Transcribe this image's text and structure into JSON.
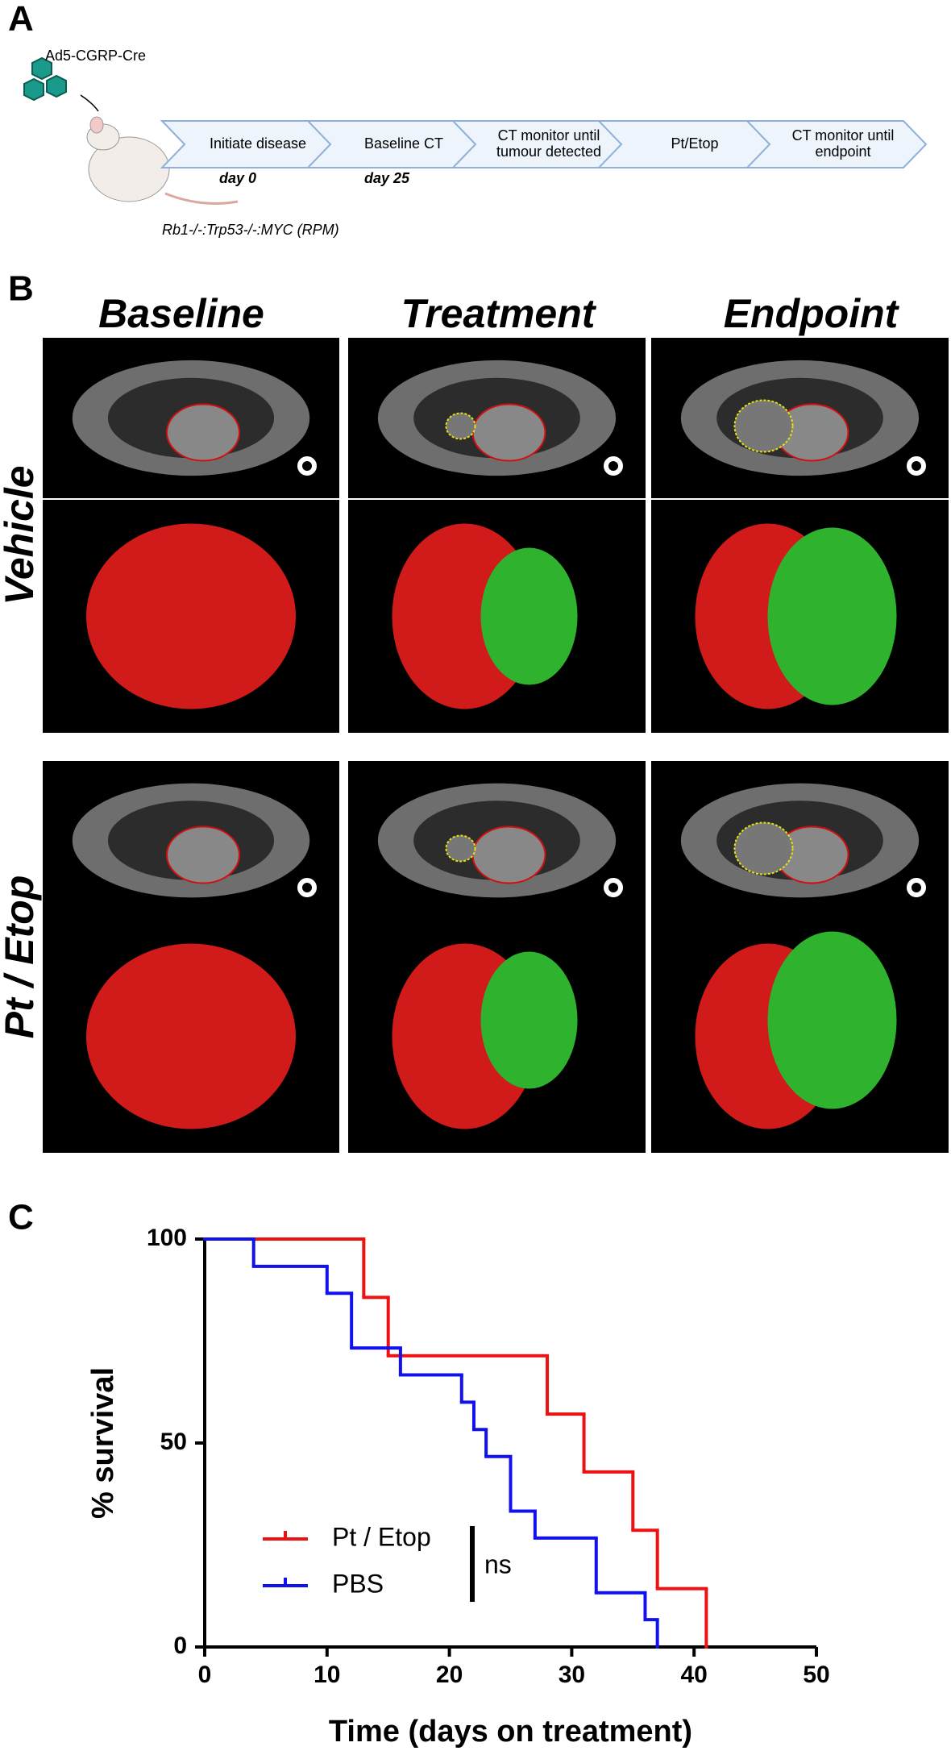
{
  "panel_a": {
    "label": "A",
    "vector": "Ad5-CGRP-Cre",
    "genotype": "Rb1-/-:Trp53-/-:MYC (RPM)",
    "steps": [
      [
        "Initiate disease"
      ],
      [
        "Baseline CT"
      ],
      [
        "CT monitor until",
        "tumour detected"
      ],
      [
        "Pt/Etop"
      ],
      [
        "CT monitor until",
        "endpoint"
      ]
    ],
    "days": [
      "day 0",
      "day 25"
    ]
  },
  "panel_b": {
    "label": "B",
    "columns": [
      "Baseline",
      "Treatment",
      "Endpoint"
    ],
    "rows": [
      "Vehicle",
      "Pt / Etop"
    ]
  },
  "chart_data": {
    "type": "line",
    "step": "post",
    "panel_label": "C",
    "x_label": "Time (days on treatment)",
    "y_label": "% survival",
    "xlim": [
      0,
      50
    ],
    "xticks": [
      0,
      10,
      20,
      30,
      40,
      50
    ],
    "ylim": [
      0,
      100
    ],
    "yticks": [
      0,
      50,
      100
    ],
    "series": [
      {
        "name": "Pt / Etop",
        "color": "#ee1111",
        "x": [
          0,
          13,
          15,
          28,
          31,
          35,
          37,
          41
        ],
        "values": [
          100,
          85.7,
          71.4,
          57.1,
          42.9,
          28.6,
          14.3,
          0
        ]
      },
      {
        "name": "PBS",
        "color": "#1111ee",
        "x": [
          0,
          4,
          10,
          12,
          16,
          21,
          22,
          23,
          25,
          27,
          32,
          36,
          37
        ],
        "values": [
          100,
          93.3,
          86.7,
          73.3,
          66.7,
          60,
          53.3,
          46.7,
          33.3,
          26.7,
          13.3,
          6.7,
          0
        ]
      }
    ],
    "annotation": "ns"
  }
}
